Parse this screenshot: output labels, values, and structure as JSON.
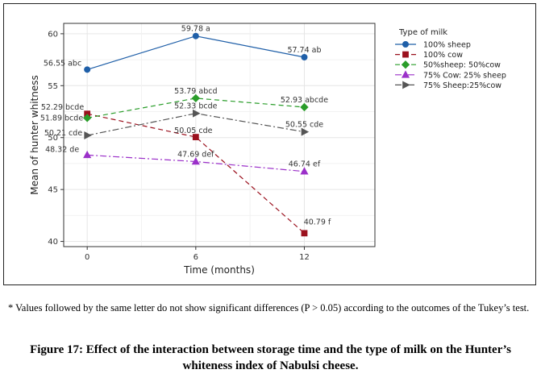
{
  "chart_data": {
    "type": "line",
    "xlabel": "Time (months)",
    "ylabel": "Mean of hunter whitness",
    "x": [
      0,
      6,
      12
    ],
    "x_tick_labels": [
      "0",
      "6",
      "12"
    ],
    "ylim": [
      39.5,
      61
    ],
    "y_ticks": [
      40,
      45,
      50,
      55,
      60
    ],
    "grid": true,
    "legend_title": "Type of milk",
    "legend_position": "right",
    "series": [
      {
        "name": "100% sheep",
        "color": "#1f5fa8",
        "marker": "circle",
        "dash": "solid",
        "values": [
          56.55,
          59.78,
          57.74
        ],
        "labels": [
          "56.55 abc",
          "59.78 a",
          "57.74 ab"
        ]
      },
      {
        "name": "100% cow",
        "color": "#9b111e",
        "marker": "square",
        "dash": "dashed",
        "values": [
          52.29,
          50.05,
          40.79
        ],
        "labels": [
          "52.29 bcde",
          "50.05 cde",
          "40.79 f"
        ]
      },
      {
        "name": "50%sheep: 50%cow",
        "color": "#2a9d2a",
        "marker": "diamond",
        "dash": "dashed",
        "values": [
          51.89,
          53.79,
          52.93
        ],
        "labels": [
          "51.89 bcde",
          "53.79 abcd",
          "52.93 abcde"
        ]
      },
      {
        "name": "75% Cow: 25% sheep",
        "color": "#9b30c9",
        "marker": "triangle-up",
        "dash": "dashdot",
        "values": [
          48.32,
          47.69,
          46.74
        ],
        "labels": [
          "48.32 de",
          "47.69 def",
          "46.74 ef"
        ]
      },
      {
        "name": "75% Sheep:25%cow",
        "color": "#555555",
        "marker": "triangle-right",
        "dash": "dashdot",
        "values": [
          50.21,
          52.33,
          50.55
        ],
        "labels": [
          "50.21 cde",
          "52.33 bcde",
          "50.55 cde"
        ]
      }
    ]
  },
  "footnote": "* Values followed by the same letter do not show significant differences (P > 0.05) according to the outcomes of the Tukey’s test.",
  "caption": "Figure 17: Effect of the interaction between storage time and the type of milk on the Hunter’s whiteness index of Nabulsi cheese."
}
